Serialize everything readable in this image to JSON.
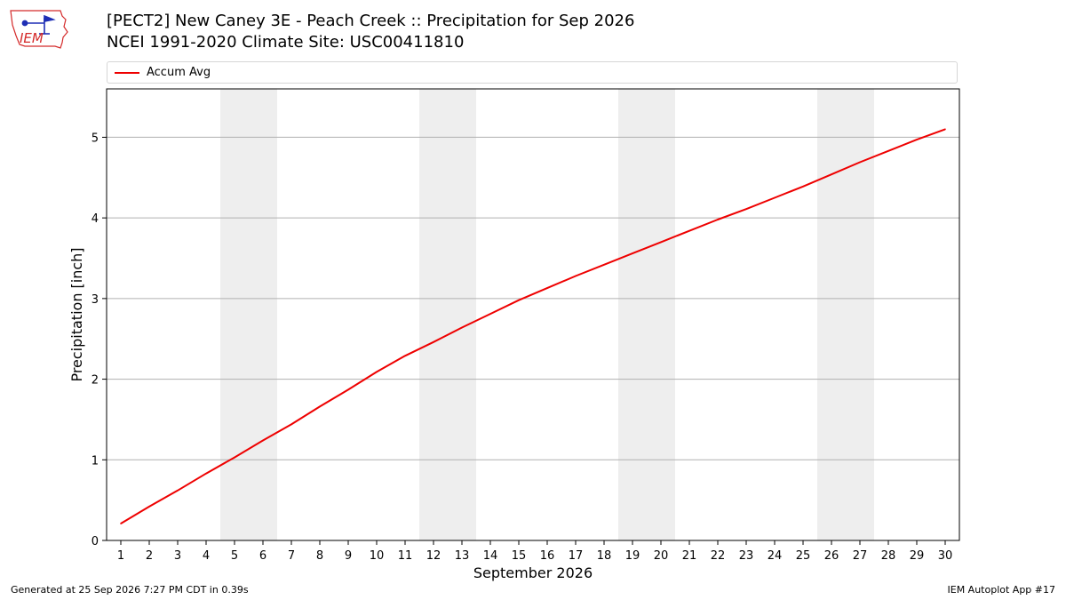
{
  "header": {
    "title_line1": "[PECT2] New Caney 3E - Peach Creek :: Precipitation for Sep 2026",
    "title_line2": "NCEI 1991-2020 Climate Site: USC00411810",
    "logo_text": "IEM"
  },
  "footer": {
    "generated": "Generated at 25 Sep 2026 7:27 PM CDT in 0.39s",
    "app": "IEM Autoplot App #17"
  },
  "chart_data": {
    "type": "line",
    "xlabel": "September 2026",
    "ylabel": "Precipitation [inch]",
    "xlim": [
      0.5,
      30.5
    ],
    "ylim": [
      0,
      5.6
    ],
    "yticks": [
      0,
      1,
      2,
      3,
      4,
      5
    ],
    "xticks": [
      1,
      2,
      3,
      4,
      5,
      6,
      7,
      8,
      9,
      10,
      11,
      12,
      13,
      14,
      15,
      16,
      17,
      18,
      19,
      20,
      21,
      22,
      23,
      24,
      25,
      26,
      27,
      28,
      29,
      30
    ],
    "grid_y": true,
    "legend": "top, above plot",
    "weekend_shading": [
      [
        4.5,
        6.5
      ],
      [
        11.5,
        13.5
      ],
      [
        18.5,
        20.5
      ],
      [
        25.5,
        27.5
      ]
    ],
    "colors": {
      "series": "#ee0000",
      "weekend": "#eeeeee",
      "grid": "#b0b0b0"
    },
    "series": [
      {
        "name": "Accum Avg",
        "x": [
          1,
          2,
          3,
          4,
          5,
          6,
          7,
          8,
          9,
          10,
          11,
          12,
          13,
          14,
          15,
          16,
          17,
          18,
          19,
          20,
          21,
          22,
          23,
          24,
          25,
          26,
          27,
          28,
          29,
          30
        ],
        "values": [
          0.21,
          0.42,
          0.62,
          0.83,
          1.03,
          1.24,
          1.44,
          1.66,
          1.87,
          2.09,
          2.29,
          2.46,
          2.64,
          2.81,
          2.98,
          3.13,
          3.28,
          3.42,
          3.56,
          3.7,
          3.84,
          3.98,
          4.11,
          4.25,
          4.39,
          4.54,
          4.69,
          4.83,
          4.97,
          5.1
        ]
      }
    ]
  }
}
